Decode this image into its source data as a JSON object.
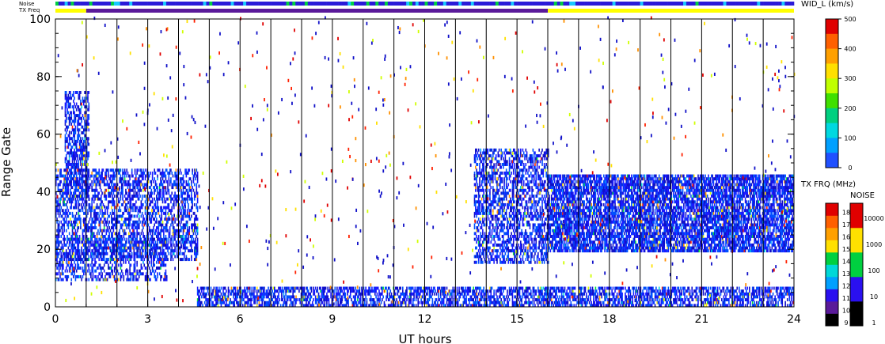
{
  "chart_data": {
    "type": "heatmap",
    "xlabel": "UT hours",
    "ylabel": "Range Gate",
    "xlim": [
      0,
      24
    ],
    "ylim": [
      0,
      100
    ],
    "xticks": [
      0,
      3,
      6,
      9,
      12,
      15,
      18,
      21,
      24
    ],
    "yticks": [
      0,
      20,
      40,
      60,
      80,
      100
    ],
    "hour_lines": [
      1,
      2,
      3,
      4,
      5,
      6,
      7,
      8,
      9,
      10,
      11,
      12,
      13,
      14,
      15,
      16,
      17,
      18,
      19,
      20,
      21,
      22,
      23
    ],
    "status_bars": {
      "noise_label": "Noise",
      "txfreq_label": "TX Freq",
      "txfreq_segments": [
        {
          "start": 0,
          "end": 1,
          "color": "#ffff00"
        },
        {
          "start": 1,
          "end": 16,
          "color": "#5a1a9a"
        },
        {
          "start": 16,
          "end": 24,
          "color": "#ffff00"
        }
      ]
    },
    "regions": [
      {
        "name": "morning-echo-upper",
        "x0": 0.3,
        "x1": 1.1,
        "y0": 38,
        "y1": 75,
        "density": 0.55,
        "vmax": 150
      },
      {
        "name": "morning-echo-band",
        "x0": 0.0,
        "x1": 4.6,
        "y0": 16,
        "y1": 48,
        "density": 0.5,
        "vmax": 160
      },
      {
        "name": "morning-echo-lower",
        "x0": 0.0,
        "x1": 3.6,
        "y0": 9,
        "y1": 24,
        "density": 0.4,
        "vmax": 120
      },
      {
        "name": "afternoon-echo",
        "x0": 13.6,
        "x1": 16.0,
        "y0": 15,
        "y1": 55,
        "density": 0.5,
        "vmax": 130
      },
      {
        "name": "evening-echo",
        "x0": 16.0,
        "x1": 24.0,
        "y0": 19,
        "y1": 46,
        "density": 0.75,
        "vmax": 90
      },
      {
        "name": "ground-scatter",
        "x0": 4.6,
        "x1": 24.0,
        "y0": 0,
        "y1": 7,
        "density": 0.6,
        "vmax": 70
      }
    ],
    "velocity_colorbar": {
      "title": "WID_L (km/s)",
      "range": [
        0,
        500
      ],
      "ticks": [
        0,
        100,
        200,
        300,
        400,
        500
      ]
    },
    "txfreq_colorbar": {
      "title": "TX FRQ (MHz)",
      "ticks": [
        9,
        10,
        11,
        12,
        13,
        14,
        15,
        16,
        17,
        18
      ]
    },
    "noise_colorbar": {
      "title": "NOISE",
      "ticks": [
        "1",
        "10",
        "100",
        "1000",
        "10000"
      ]
    },
    "colors": {
      "scale": [
        "#1a1aff",
        "#0050ff",
        "#00a0ff",
        "#00d8d8",
        "#00e040",
        "#d0ff00",
        "#ffe000",
        "#ff9000",
        "#ff2000",
        "#e00000"
      ],
      "dark_blue": "#1010c8"
    }
  }
}
